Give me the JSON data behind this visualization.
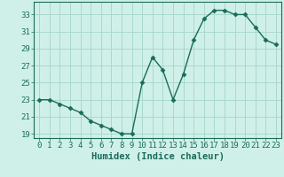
{
  "x": [
    0,
    1,
    2,
    3,
    4,
    5,
    6,
    7,
    8,
    9,
    10,
    11,
    12,
    13,
    14,
    15,
    16,
    17,
    18,
    19,
    20,
    21,
    22,
    23
  ],
  "y": [
    23,
    23,
    22.5,
    22,
    21.5,
    20.5,
    20,
    19.5,
    19,
    19,
    25,
    28,
    26.5,
    23,
    26,
    30,
    32.5,
    33.5,
    33.5,
    33,
    33,
    31.5,
    30,
    29.5
  ],
  "line_color": "#1a6b5a",
  "marker": "D",
  "marker_size": 2.5,
  "bg_color": "#cff0e8",
  "grid_color": "#aad8ce",
  "xlabel": "Humidex (Indice chaleur)",
  "xlim": [
    -0.5,
    23.5
  ],
  "ylim": [
    18.5,
    34.5
  ],
  "yticks": [
    19,
    21,
    23,
    25,
    27,
    29,
    31,
    33
  ],
  "xlabel_fontsize": 7.5,
  "tick_fontsize": 6.5,
  "line_width": 1.0
}
